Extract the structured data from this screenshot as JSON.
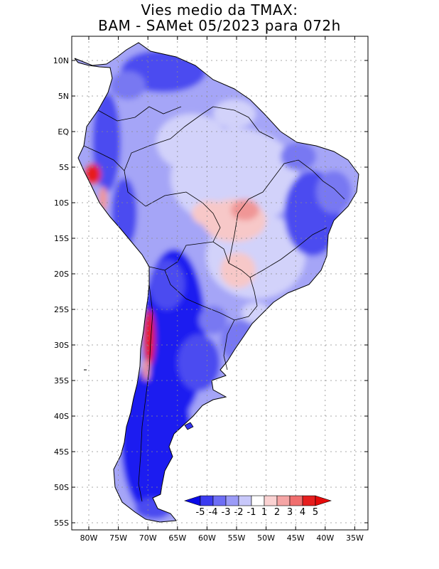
{
  "title": {
    "line1": "Vies medio da TMAX:",
    "line2": "BAM - SAMet 05/2023  para 072h"
  },
  "map": {
    "lat_ticks": [
      "10N",
      "5N",
      "EQ",
      "5S",
      "10S",
      "15S",
      "20S",
      "25S",
      "30S",
      "35S",
      "40S",
      "45S",
      "50S",
      "55S"
    ],
    "lon_ticks": [
      "80W",
      "75W",
      "70W",
      "65W",
      "60W",
      "55W",
      "50W",
      "45W",
      "40W",
      "35W"
    ],
    "lat_range": [
      -55.5,
      13
    ],
    "lon_range": [
      -82.5,
      -34.5
    ]
  },
  "colorbar": {
    "labels": [
      "-5",
      "-4",
      "-3",
      "-2",
      "-1",
      "1",
      "2",
      "3",
      "4",
      "5"
    ],
    "colors": [
      "#0a0ae6",
      "#3c3cf0",
      "#6e6ef5",
      "#9b9bf7",
      "#c8c8fa",
      "#ffffff",
      "#fad2d2",
      "#f5a5a5",
      "#f06e6e",
      "#e61e1e",
      "#e60a0a"
    ]
  },
  "palette": {
    "deep_blue": "#1e1ef0",
    "blue": "#4b4bf0",
    "mid_blue": "#7878f2",
    "light_blue": "#a5a5f7",
    "pale_blue": "#d2d2fa",
    "light_pink": "#f7c8c8",
    "pink": "#f09696",
    "red": "#e61e1e"
  }
}
